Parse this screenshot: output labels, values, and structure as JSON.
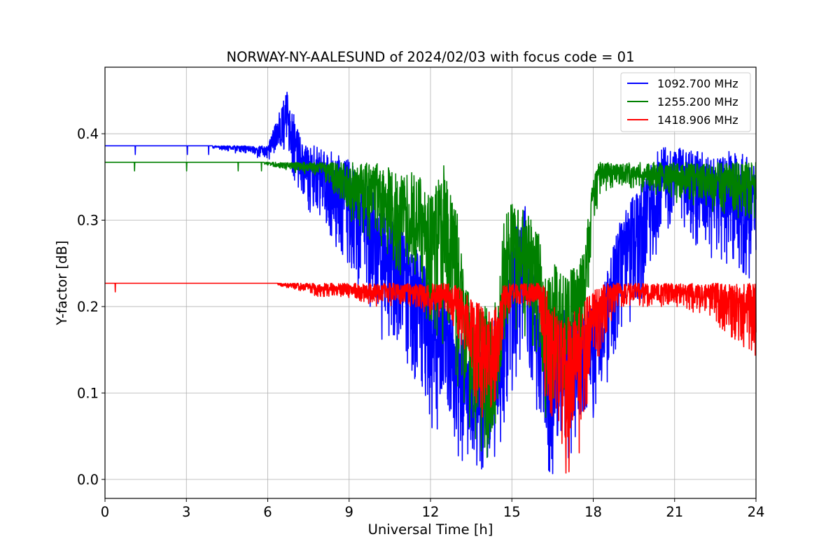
{
  "chart_data": {
    "type": "line",
    "title": "NORWAY-NY-AALESUND of 2024/02/03 with focus code = 01",
    "xlabel": "Universal Time [h]",
    "ylabel": "Y-factor [dB]",
    "xlim": [
      0,
      24
    ],
    "ylim": [
      -0.022,
      0.477
    ],
    "xticks": [
      0,
      3,
      6,
      9,
      12,
      15,
      18,
      21,
      24
    ],
    "yticks": [
      0.0,
      0.1,
      0.2,
      0.3,
      0.4
    ],
    "ytick_labels": [
      "0.0",
      "0.1",
      "0.2",
      "0.3",
      "0.4"
    ],
    "grid": true,
    "legend": "top-right",
    "series": [
      {
        "name": "1092.700 MHz",
        "color": "#0000ff",
        "baseline": 0.386,
        "spike_step": 0.01,
        "seed": 11,
        "envelope": {
          "x": [
            0,
            3.5,
            6.0,
            6.7,
            7.3,
            8.0,
            9.0,
            10.0,
            11.0,
            12.0,
            12.8,
            13.5,
            14.0,
            14.5,
            15.0,
            15.5,
            16.0,
            16.4,
            17.0,
            17.5,
            18.0,
            18.5,
            19.0,
            20.0,
            20.5,
            21.0,
            21.5,
            22.0,
            22.5,
            23.0,
            23.5,
            24.0
          ],
          "upper": [
            0.386,
            0.386,
            0.386,
            0.45,
            0.386,
            0.386,
            0.37,
            0.33,
            0.29,
            0.24,
            0.2,
            0.14,
            0.15,
            0.2,
            0.28,
            0.32,
            0.2,
            0.19,
            0.2,
            0.19,
            0.2,
            0.24,
            0.3,
            0.36,
            0.386,
            0.386,
            0.38,
            0.38,
            0.37,
            0.38,
            0.38,
            0.36
          ],
          "lower": [
            0.386,
            0.386,
            0.37,
            0.37,
            0.32,
            0.29,
            0.24,
            0.17,
            0.13,
            0.06,
            0.03,
            0.01,
            0.01,
            0.02,
            0.1,
            0.15,
            0.06,
            0.0,
            0.02,
            0.03,
            0.07,
            0.11,
            0.16,
            0.22,
            0.27,
            0.3,
            0.28,
            0.26,
            0.25,
            0.25,
            0.24,
            0.22
          ]
        }
      },
      {
        "name": "1255.200 MHz",
        "color": "#008000",
        "baseline": 0.367,
        "spike_step": 0.01,
        "seed": 23,
        "envelope": {
          "x": [
            0,
            5.5,
            7.0,
            8.0,
            9.0,
            10.0,
            10.5,
            11.0,
            11.5,
            12.0,
            12.5,
            13.0,
            13.2,
            13.5,
            14.0,
            14.5,
            14.7,
            15.0,
            15.5,
            16.0,
            16.2,
            16.5,
            17.0,
            17.5,
            17.8,
            18.0,
            18.2,
            19.0,
            20.0,
            21.0,
            22.0,
            23.0,
            24.0
          ],
          "upper": [
            0.367,
            0.367,
            0.367,
            0.367,
            0.367,
            0.367,
            0.36,
            0.35,
            0.36,
            0.33,
            0.37,
            0.31,
            0.24,
            0.21,
            0.2,
            0.21,
            0.3,
            0.32,
            0.31,
            0.29,
            0.23,
            0.25,
            0.24,
            0.25,
            0.3,
            0.35,
            0.367,
            0.367,
            0.367,
            0.367,
            0.367,
            0.367,
            0.367
          ],
          "lower": [
            0.367,
            0.367,
            0.355,
            0.35,
            0.3,
            0.27,
            0.25,
            0.23,
            0.2,
            0.18,
            0.15,
            0.1,
            0.07,
            0.04,
            0.02,
            0.05,
            0.15,
            0.18,
            0.16,
            0.14,
            0.06,
            0.08,
            0.1,
            0.14,
            0.2,
            0.27,
            0.33,
            0.34,
            0.33,
            0.32,
            0.31,
            0.3,
            0.3
          ]
        }
      },
      {
        "name": "1418.906 MHz",
        "color": "#ff0000",
        "baseline": 0.227,
        "spike_step": 0.01,
        "seed": 37,
        "envelope": {
          "x": [
            0,
            6.0,
            7.5,
            8.0,
            9.0,
            10.0,
            11.0,
            12.0,
            12.8,
            13.2,
            13.5,
            14.0,
            14.5,
            14.7,
            15.0,
            15.5,
            16.0,
            16.2,
            16.5,
            17.0,
            17.5,
            18.0,
            18.5,
            19.0,
            20.0,
            21.0,
            22.0,
            22.5,
            23.0,
            23.5,
            24.0
          ],
          "upper": [
            0.227,
            0.227,
            0.227,
            0.227,
            0.227,
            0.227,
            0.227,
            0.227,
            0.227,
            0.22,
            0.21,
            0.2,
            0.2,
            0.227,
            0.227,
            0.227,
            0.227,
            0.227,
            0.2,
            0.2,
            0.2,
            0.22,
            0.227,
            0.227,
            0.227,
            0.227,
            0.227,
            0.227,
            0.227,
            0.227,
            0.227
          ],
          "lower": [
            0.227,
            0.227,
            0.215,
            0.21,
            0.21,
            0.2,
            0.2,
            0.19,
            0.18,
            0.15,
            0.1,
            0.06,
            0.09,
            0.17,
            0.2,
            0.2,
            0.2,
            0.1,
            0.04,
            0.0,
            0.03,
            0.12,
            0.17,
            0.2,
            0.2,
            0.2,
            0.19,
            0.18,
            0.16,
            0.15,
            0.14
          ]
        }
      }
    ]
  }
}
